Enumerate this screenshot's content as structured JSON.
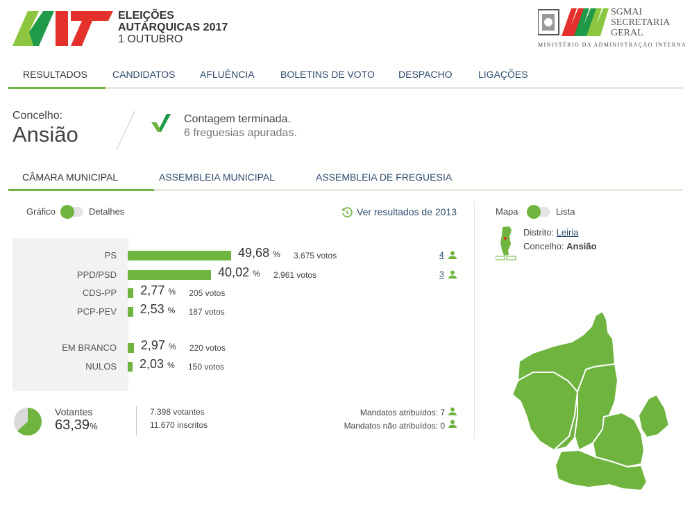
{
  "header": {
    "title_line1": "ELEIÇÕES",
    "title_line2": "AUTÁRQUICAS 2017",
    "title_line3": "1 OUTUBRO",
    "org_line1": "SGMAI",
    "org_line2": "SECRETARIA",
    "org_line3": "GERAL",
    "ministry": "MINISTÉRIO DA ADMINISTRAÇÃO INTERNA"
  },
  "nav": [
    "RESULTADOS",
    "CANDIDATOS",
    "AFLUÊNCIA",
    "BOLETINS DE VOTO",
    "DESPACHO",
    "LIGAÇÕES"
  ],
  "concelho": {
    "label": "Concelho:",
    "name": "Ansião",
    "status": "Contagem terminada.",
    "freguesias": "6 freguesias apuradas."
  },
  "subnav": [
    "CÂMARA MUNICIPAL",
    "ASSEMBLEIA MUNICIPAL",
    "ASSEMBLEIA DE FREGUESIA"
  ],
  "view_toggle": {
    "left": "Gráfico",
    "right": "Detalhes"
  },
  "history_link": "Ver resultados de 2013",
  "results": [
    {
      "party": "PS",
      "pct": "49,68",
      "unit": "%",
      "votes": "3.675 votos",
      "share": 0.4968,
      "mandates": "4"
    },
    {
      "party": "PPD/PSD",
      "pct": "40,02",
      "unit": "%",
      "votes": "2.961 votos",
      "share": 0.4002,
      "mandates": "3"
    },
    {
      "party": "CDS-PP",
      "pct": "2,77",
      "unit": "%",
      "votes": "205 votos",
      "share": 0.0277
    },
    {
      "party": "PCP-PEV",
      "pct": "2,53",
      "unit": "%",
      "votes": "187 votos",
      "share": 0.0253
    }
  ],
  "blank_null": [
    {
      "party": "EM BRANCO",
      "pct": "2,97",
      "unit": "%",
      "votes": "220 votos",
      "share": 0.0297
    },
    {
      "party": "NULOS",
      "pct": "2,03",
      "unit": "%",
      "votes": "150 votos",
      "share": 0.0203
    }
  ],
  "turnout": {
    "label": "Votantes",
    "pct": "63,39",
    "unit": "%",
    "share": 0.6339,
    "votantes": "7.398 votantes",
    "inscritos": "11.670 inscritos"
  },
  "mandates": {
    "assigned": "Mandatos atribuídos: 7",
    "unassigned": "Mandatos não atribuídos: 0"
  },
  "map_toggle": {
    "left": "Mapa",
    "right": "Lista"
  },
  "location": {
    "district_label": "Distrito:",
    "district": "Leiria",
    "concelho_label": "Concelho:",
    "concelho": "Ansião"
  },
  "colors": {
    "accent": "#6eb43f",
    "red": "#e4312b",
    "link": "#2c4a6b"
  }
}
